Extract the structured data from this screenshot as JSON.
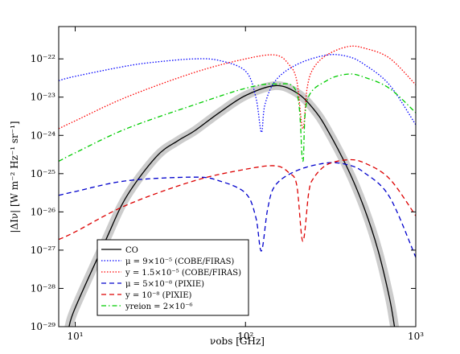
{
  "chart_data": {
    "type": "line",
    "log_x": true,
    "log_y": true,
    "x_label": "νobs [GHz]",
    "y_label": "|ΔIν| [W m⁻² Hz⁻¹ sr⁻¹]",
    "xlim": [
      8,
      1000
    ],
    "ylim": [
      1e-29,
      7e-22
    ],
    "xticks": [
      {
        "value": 10,
        "label": "10¹"
      },
      {
        "value": 100,
        "label": "10²"
      },
      {
        "value": 1000,
        "label": "10³"
      }
    ],
    "yticks": [
      {
        "value": 1e-29,
        "label": "10⁻²⁹"
      },
      {
        "value": 1e-28,
        "label": "10⁻²⁸"
      },
      {
        "value": 1e-27,
        "label": "10⁻²⁷"
      },
      {
        "value": 1e-26,
        "label": "10⁻²⁶"
      },
      {
        "value": 1e-25,
        "label": "10⁻²⁵"
      },
      {
        "value": 1e-24,
        "label": "10⁻²⁴"
      },
      {
        "value": 1e-23,
        "label": "10⁻²³"
      },
      {
        "value": 1e-22,
        "label": "10⁻²²"
      }
    ],
    "legend": "lower left",
    "series": [
      {
        "name": "CO",
        "color": "#000000",
        "linestyle": "solid",
        "band": true,
        "x": [
          9.2,
          10,
          15,
          20,
          30,
          40,
          50,
          70,
          100,
          150,
          200,
          250,
          300,
          400,
          500,
          600,
          700,
          750
        ],
        "values": [
          1e-29,
          3.1e-29,
          1.7e-27,
          2.5e-26,
          2.8e-25,
          7.2e-25,
          1.3e-24,
          3.9e-24,
          1.1e-23,
          2e-23,
          1.3e-23,
          5e-24,
          1.5e-24,
          1.3e-25,
          1.2e-26,
          1e-27,
          5.8e-29,
          1e-29
        ]
      },
      {
        "name": "μ = 9×10⁻⁵ (COBE/FIRAS)",
        "color": "#0000ff",
        "linestyle": "dotted",
        "x": [
          8,
          10,
          20,
          30,
          50,
          70,
          100,
          115,
          124,
          130,
          150,
          200,
          300,
          400,
          500,
          700,
          1000
        ],
        "values": [
          2.7e-23,
          3.5e-23,
          6.5e-23,
          8.3e-23,
          1e-22,
          9.1e-23,
          4.8e-23,
          1e-23,
          1.2e-24,
          6.3e-24,
          2.7e-23,
          7.1e-23,
          1.26e-22,
          1.15e-22,
          7.1e-23,
          2.1e-23,
          1.9e-24
        ]
      },
      {
        "name": "y = 1.5×10⁻⁵ (COBE/FIRAS)",
        "color": "#ff0000",
        "linestyle": "dotted",
        "x": [
          8,
          10,
          20,
          50,
          100,
          150,
          180,
          200,
          217,
          230,
          250,
          300,
          400,
          500,
          700,
          1000
        ],
        "values": [
          1.5e-24,
          2.4e-24,
          1e-23,
          4.4e-23,
          1e-22,
          1.26e-22,
          7.1e-23,
          2.7e-23,
          1.5e-24,
          1.7e-23,
          5.6e-23,
          1.26e-22,
          2.1e-22,
          1.9e-22,
          1.05e-22,
          2.1e-23
        ]
      },
      {
        "name": "μ = 5×10⁻⁸ (PIXIE)",
        "color": "#0000cc",
        "linestyle": "dashed",
        "x": [
          8,
          10,
          20,
          50,
          70,
          100,
          115,
          124,
          135,
          150,
          200,
          300,
          400,
          500,
          700,
          1000
        ],
        "values": [
          2.7e-26,
          3.4e-26,
          6.5e-26,
          8.1e-26,
          6.5e-26,
          3.1e-26,
          7.2e-27,
          9.5e-28,
          1.2e-26,
          5e-26,
          1.2e-25,
          1.9e-25,
          1.7e-25,
          1.05e-25,
          2.5e-26,
          6.5e-28
        ]
      },
      {
        "name": "y = 10⁻⁸ (PIXIE)",
        "color": "#dd0000",
        "linestyle": "dashed",
        "x": [
          8,
          10,
          20,
          50,
          100,
          150,
          180,
          200,
          217,
          235,
          250,
          300,
          400,
          500,
          700,
          1000
        ],
        "values": [
          1.9e-27,
          3e-27,
          1.5e-26,
          6.5e-26,
          1.3e-25,
          1.6e-25,
          1.05e-25,
          5e-26,
          1.7e-27,
          3.1e-26,
          7.4e-26,
          1.7e-25,
          2.3e-25,
          1.9e-25,
          7.4e-26,
          7.9e-27
        ]
      },
      {
        "name": "yreion = 2×10⁻⁶",
        "color": "#00cc00",
        "linestyle": "dashdot",
        "x": [
          8,
          10,
          20,
          50,
          100,
          150,
          200,
          217,
          230,
          300,
          400,
          500,
          700,
          1000
        ],
        "values": [
          2.1e-25,
          3.5e-25,
          1.5e-24,
          6.3e-24,
          1.7e-23,
          2.2e-23,
          1.3e-23,
          2.1e-25,
          8.1e-24,
          2.7e-23,
          4e-23,
          3.3e-23,
          1.7e-23,
          3.9e-24
        ]
      }
    ]
  }
}
